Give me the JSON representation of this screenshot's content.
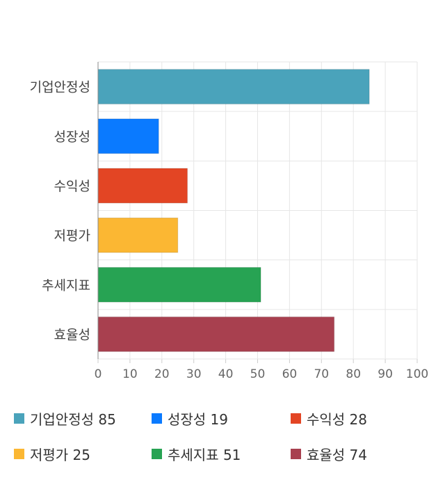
{
  "chart_data": {
    "type": "bar",
    "orientation": "horizontal",
    "categories": [
      "기업안정성",
      "성장성",
      "수익성",
      "저평가",
      "추세지표",
      "효율성"
    ],
    "values": [
      85,
      19,
      28,
      25,
      51,
      74
    ],
    "colors": [
      "#4aa3bb",
      "#0a7aff",
      "#e34524",
      "#fbb733",
      "#27a353",
      "#a8404f"
    ],
    "xlim": [
      0,
      100
    ],
    "xticks": [
      "0",
      "10",
      "20",
      "30",
      "40",
      "50",
      "60",
      "70",
      "80",
      "90",
      "100"
    ],
    "grid": true,
    "legend_position": "bottom"
  },
  "legend": [
    {
      "text": "기업안정성 85",
      "color": "#4aa3bb"
    },
    {
      "text": "성장성 19",
      "color": "#0a7aff"
    },
    {
      "text": "수익성 28",
      "color": "#e34524"
    },
    {
      "text": "저평가 25",
      "color": "#fbb733"
    },
    {
      "text": "추세지표 51",
      "color": "#27a353"
    },
    {
      "text": "효율성 74",
      "color": "#a8404f"
    }
  ]
}
